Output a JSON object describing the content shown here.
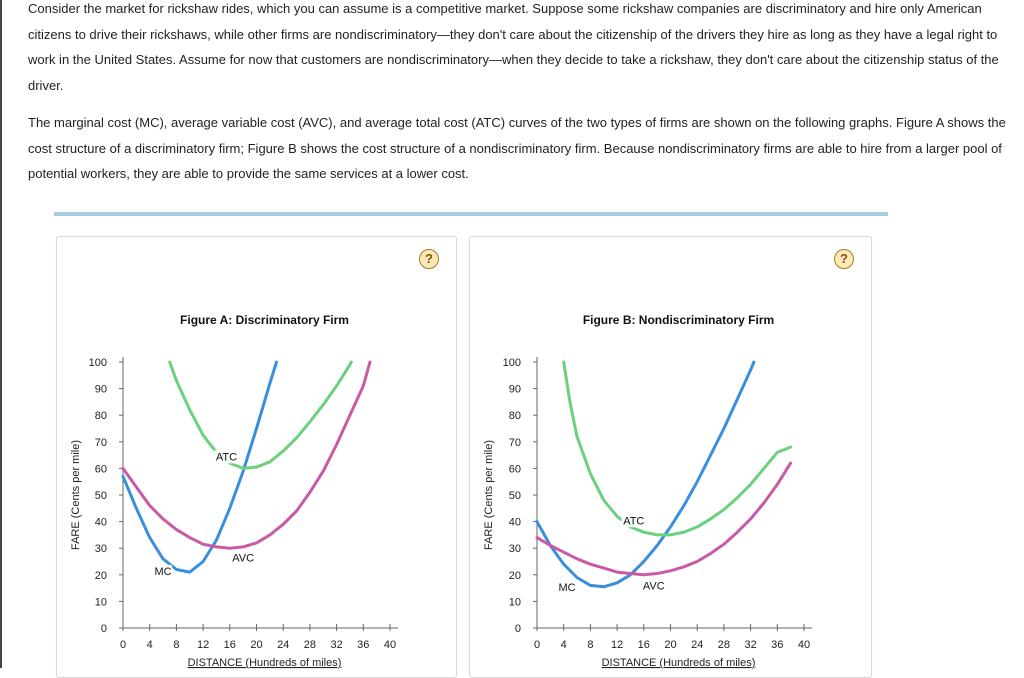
{
  "intro": {
    "paragraph1": "Consider the market for rickshaw rides, which you can assume is a competitive market. Suppose some rickshaw companies are discriminatory and hire only American citizens to drive their rickshaws, while other firms are nondiscriminatory—they don't care about the citizenship of the drivers they hire as long as they have a legal right to work in the United States. Assume for now that customers are nondiscriminatory—when they decide to take a rickshaw, they don't care about the citizenship status of the driver.",
    "paragraph2": "The marginal cost (MC), average variable cost (AVC), and average total cost (ATC) curves of the two types of firms are shown on the following graphs. Figure A shows the cost structure of a discriminatory firm; Figure B shows the cost structure of a nondiscriminatory firm. Because nondiscriminatory firms are able to hire from a larger pool of potential workers, they are able to provide the same services at a lower cost."
  },
  "help_label": "?",
  "colors": {
    "mc": "#3a8fdc",
    "avc": "#c95aa6",
    "atc": "#6cd07e"
  },
  "chart_data": [
    {
      "type": "line",
      "title": "Figure A: Discriminatory Firm",
      "xlabel": "DISTANCE (Hundreds of miles)",
      "ylabel": "FARE (Cents per mile)",
      "xlim": [
        0,
        40
      ],
      "ylim": [
        0,
        100
      ],
      "xticks": [
        0,
        4,
        8,
        12,
        16,
        20,
        24,
        28,
        32,
        36,
        40
      ],
      "yticks": [
        0,
        10,
        20,
        30,
        40,
        50,
        60,
        70,
        80,
        90,
        100
      ],
      "series": [
        {
          "name": "MC",
          "color_key": "mc",
          "label_at": [
            6,
            20
          ],
          "points": [
            [
              0,
              57
            ],
            [
              2,
              45
            ],
            [
              4,
              34
            ],
            [
              6,
              26
            ],
            [
              8,
              22
            ],
            [
              10,
              21
            ],
            [
              12,
              25
            ],
            [
              14,
              33
            ],
            [
              16,
              45
            ],
            [
              18,
              59
            ],
            [
              20,
              75
            ],
            [
              22,
              92
            ],
            [
              23,
              100
            ]
          ]
        },
        {
          "name": "AVC",
          "color_key": "avc",
          "label_at": [
            18,
            25
          ],
          "points": [
            [
              0,
              60
            ],
            [
              2,
              53
            ],
            [
              4,
              46
            ],
            [
              6,
              41
            ],
            [
              8,
              37
            ],
            [
              10,
              34
            ],
            [
              12,
              31.5
            ],
            [
              14,
              30.5
            ],
            [
              16,
              30
            ],
            [
              18,
              30.5
            ],
            [
              20,
              32
            ],
            [
              22,
              35
            ],
            [
              24,
              39
            ],
            [
              26,
              44
            ],
            [
              28,
              51
            ],
            [
              30,
              59
            ],
            [
              32,
              69
            ],
            [
              34,
              80
            ],
            [
              36,
              91
            ],
            [
              37,
              100
            ]
          ]
        },
        {
          "name": "ATC",
          "color_key": "atc",
          "label_at": [
            15.5,
            63
          ],
          "points": [
            [
              7,
              100
            ],
            [
              8,
              93
            ],
            [
              10,
              82
            ],
            [
              12,
              72.5
            ],
            [
              14,
              66
            ],
            [
              16,
              62
            ],
            [
              18,
              60
            ],
            [
              20,
              60.5
            ],
            [
              22,
              62.5
            ],
            [
              24,
              66.5
            ],
            [
              26,
              71.5
            ],
            [
              28,
              77.5
            ],
            [
              30,
              84
            ],
            [
              32,
              91
            ],
            [
              34,
              99
            ],
            [
              34.2,
              100
            ]
          ]
        }
      ]
    },
    {
      "type": "line",
      "title": "Figure B: Nondiscriminatory Firm",
      "xlabel": "DISTANCE (Hundreds of miles)",
      "ylabel": "FARE (Cents per mile)",
      "xlim": [
        0,
        40
      ],
      "ylim": [
        0,
        100
      ],
      "xticks": [
        0,
        4,
        8,
        12,
        16,
        20,
        24,
        28,
        32,
        36,
        40
      ],
      "yticks": [
        0,
        10,
        20,
        30,
        40,
        50,
        60,
        70,
        80,
        90,
        100
      ],
      "series": [
        {
          "name": "MC",
          "color_key": "mc",
          "label_at": [
            4.5,
            14
          ],
          "points": [
            [
              0,
              40
            ],
            [
              2,
              31
            ],
            [
              4,
              24
            ],
            [
              6,
              19
            ],
            [
              8,
              16
            ],
            [
              10,
              15.5
            ],
            [
              12,
              17
            ],
            [
              14,
              20
            ],
            [
              16,
              25
            ],
            [
              18,
              31
            ],
            [
              20,
              38
            ],
            [
              22,
              46
            ],
            [
              24,
              55
            ],
            [
              26,
              65
            ],
            [
              28,
              75
            ],
            [
              30,
              86
            ],
            [
              32,
              97
            ],
            [
              32.5,
              100
            ]
          ]
        },
        {
          "name": "AVC",
          "color_key": "avc",
          "label_at": [
            17.5,
            14.5
          ],
          "points": [
            [
              0,
              34
            ],
            [
              2,
              31
            ],
            [
              4,
              28.5
            ],
            [
              6,
              26
            ],
            [
              8,
              24
            ],
            [
              10,
              22.5
            ],
            [
              12,
              21
            ],
            [
              14,
              20.5
            ],
            [
              16,
              20
            ],
            [
              18,
              20.5
            ],
            [
              20,
              21.5
            ],
            [
              22,
              23
            ],
            [
              24,
              25
            ],
            [
              26,
              28
            ],
            [
              28,
              31.5
            ],
            [
              30,
              36
            ],
            [
              32,
              41
            ],
            [
              34,
              47
            ],
            [
              36,
              54
            ],
            [
              38,
              62
            ]
          ]
        },
        {
          "name": "ATC",
          "color_key": "atc",
          "label_at": [
            14.5,
            39
          ],
          "points": [
            [
              4,
              100
            ],
            [
              4.5,
              92
            ],
            [
              5,
              84
            ],
            [
              6,
              72
            ],
            [
              8,
              58
            ],
            [
              10,
              48
            ],
            [
              12,
              42
            ],
            [
              14,
              38
            ],
            [
              16,
              36
            ],
            [
              18,
              35
            ],
            [
              20,
              35
            ],
            [
              22,
              36
            ],
            [
              24,
              38
            ],
            [
              26,
              41
            ],
            [
              28,
              44.5
            ],
            [
              30,
              49
            ],
            [
              32,
              54
            ],
            [
              34,
              60
            ],
            [
              36,
              66
            ],
            [
              38,
              68
            ]
          ]
        }
      ]
    }
  ]
}
